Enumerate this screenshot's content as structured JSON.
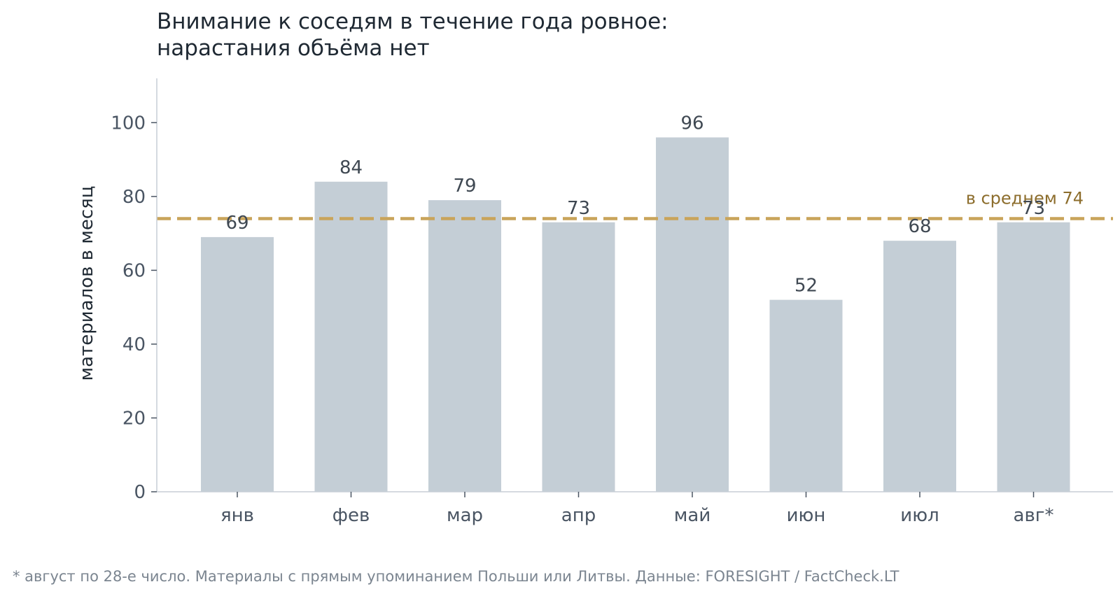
{
  "chart_data": {
    "type": "bar",
    "title": [
      "Внимание к соседям в течение года ровное:",
      "нарастания объёма нет"
    ],
    "ylabel": "материалов в месяц",
    "xlabel": "",
    "categories": [
      "янв",
      "фев",
      "мар",
      "апр",
      "май",
      "июн",
      "июл",
      "авг*"
    ],
    "values": [
      69,
      84,
      79,
      73,
      96,
      52,
      68,
      73
    ],
    "ylim": [
      0,
      112
    ],
    "yticks": [
      0,
      20,
      40,
      60,
      80,
      100
    ],
    "grid": false,
    "reference_line": {
      "value": 74,
      "label": "в среднем 74",
      "style": "dashed"
    },
    "colors": {
      "bar": "#c4ced6",
      "reference": "#c9a45a",
      "axis": "#c7ced5"
    }
  },
  "footnote": "* август по 28-е число. Материалы с прямым упоминанием Польши или Литвы. Данные: FORESIGHT / FactCheck.LT"
}
